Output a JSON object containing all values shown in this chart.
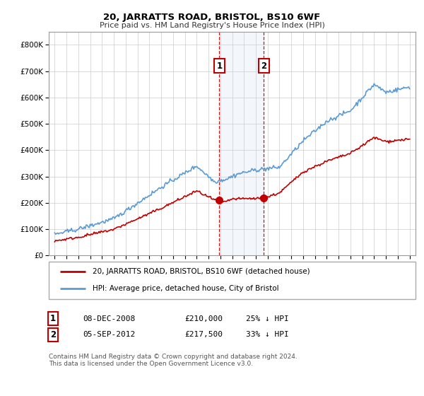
{
  "title": "20, JARRATTS ROAD, BRISTOL, BS10 6WF",
  "subtitle": "Price paid vs. HM Land Registry's House Price Index (HPI)",
  "ylim": [
    0,
    850000
  ],
  "yticks": [
    0,
    100000,
    200000,
    300000,
    400000,
    500000,
    600000,
    700000,
    800000
  ],
  "ytick_labels": [
    "£0",
    "£100K",
    "£200K",
    "£300K",
    "£400K",
    "£500K",
    "£600K",
    "£700K",
    "£800K"
  ],
  "hpi_color": "#5b9bd5",
  "price_color": "#c00000",
  "marker_fill": "#c00000",
  "sale1_date_num": 2008.92,
  "sale1_price": 210000,
  "sale2_date_num": 2012.67,
  "sale2_price": 217500,
  "shaded_xmin": 2008.92,
  "shaded_xmax": 2012.67,
  "legend_line1": "20, JARRATTS ROAD, BRISTOL, BS10 6WF (detached house)",
  "legend_line2": "HPI: Average price, detached house, City of Bristol",
  "footer": "Contains HM Land Registry data © Crown copyright and database right 2024.\nThis data is licensed under the Open Government Licence v3.0.",
  "xlim_left": 1994.5,
  "xlim_right": 2025.5,
  "sale1_date_str": "08-DEC-2008",
  "sale1_price_str": "£210,000",
  "sale1_hpi_str": "25% ↓ HPI",
  "sale2_date_str": "05-SEP-2012",
  "sale2_price_str": "£217,500",
  "sale2_hpi_str": "33% ↓ HPI"
}
